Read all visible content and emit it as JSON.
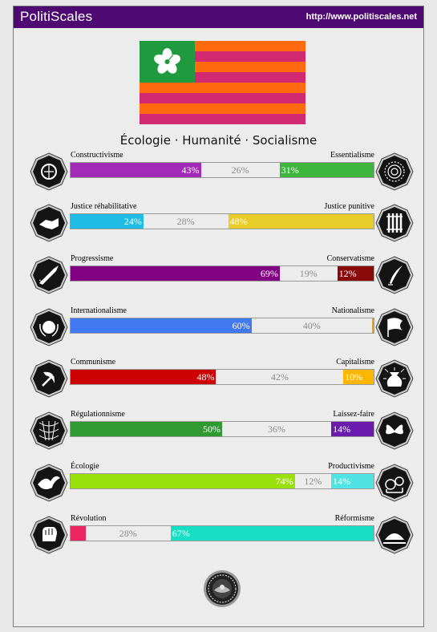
{
  "header": {
    "brand": "PolitiScales",
    "url": "http://www.politiscales.net",
    "bg_color": "#4e0a72"
  },
  "flag": {
    "stripe_colors": [
      "#ff6a0e",
      "#d22a72"
    ],
    "canton_color": "#1f9a3e",
    "emblem": "hibiscus-icon"
  },
  "slogan": "Écologie · Humanité · Socialisme",
  "axes": [
    {
      "left_label": "Constructivisme",
      "right_label": "Essentialisme",
      "left_value": 43,
      "center_value": 26,
      "right_value": 31,
      "left_pct": "43%",
      "center_pct": "26%",
      "right_pct": "31%",
      "left_color": "#a12ab7",
      "right_color": "#3db43b",
      "left_icon": "globe-icon",
      "right_icon": "flower-icon"
    },
    {
      "left_label": "Justice réhabilitative",
      "right_label": "Justice punitive",
      "left_value": 24,
      "center_value": 28,
      "right_value": 48,
      "left_pct": "24%",
      "center_pct": "28%",
      "right_pct": "48%",
      "left_color": "#1fbde6",
      "right_color": "#e8cc28",
      "left_icon": "handshake-icon",
      "right_icon": "prison-bars-icon"
    },
    {
      "left_label": "Progressisme",
      "right_label": "Conservatisme",
      "left_value": 69,
      "center_value": 19,
      "right_value": 12,
      "left_pct": "69%",
      "center_pct": "19%",
      "right_pct": "12%",
      "left_color": "#820082",
      "right_color": "#8a0a0a",
      "left_icon": "rocket-icon",
      "right_icon": "quill-icon"
    },
    {
      "left_label": "Internationalisme",
      "right_label": "Nationalisme",
      "left_value": 60,
      "center_value": 40,
      "right_value": 0,
      "left_pct": "60%",
      "center_pct": "40%",
      "right_pct": "",
      "left_color": "#3f78f0",
      "right_color": "#e3a028",
      "left_icon": "world-laurel-icon",
      "right_icon": "flag-icon"
    },
    {
      "left_label": "Communisme",
      "right_label": "Capitalisme",
      "left_value": 48,
      "center_value": 42,
      "right_value": 10,
      "left_pct": "48%",
      "center_pct": "42%",
      "right_pct": "10%",
      "left_color": "#cc0000",
      "right_color": "#ffb600",
      "left_icon": "hammer-sickle-icon",
      "right_icon": "money-bag-icon"
    },
    {
      "left_label": "Régulationnisme",
      "right_label": "Laissez-faire",
      "left_value": 50,
      "center_value": 36,
      "right_value": 14,
      "left_pct": "50%",
      "center_pct": "36%",
      "right_pct": "14%",
      "left_color": "#2f9a32",
      "right_color": "#6a1aac",
      "left_icon": "net-icon",
      "right_icon": "butterfly-icon"
    },
    {
      "left_label": "Écologie",
      "right_label": "Productivisme",
      "left_value": 74,
      "center_value": 12,
      "right_value": 14,
      "left_pct": "74%",
      "center_pct": "12%",
      "right_pct": "14%",
      "left_color": "#9ae00d",
      "right_color": "#4fe3e3",
      "left_icon": "eagle-icon",
      "right_icon": "factory-gears-icon"
    },
    {
      "left_label": "Révolution",
      "right_label": "Réformisme",
      "left_value": 5,
      "center_value": 28,
      "right_value": 67,
      "left_pct": "",
      "center_pct": "28%",
      "right_pct": "67%",
      "left_color": "#ea2660",
      "right_color": "#16dfc3",
      "left_icon": "fist-icon",
      "right_icon": "parliament-icon"
    }
  ],
  "footer": {
    "seal_icon": "politiscales-seal-icon"
  }
}
